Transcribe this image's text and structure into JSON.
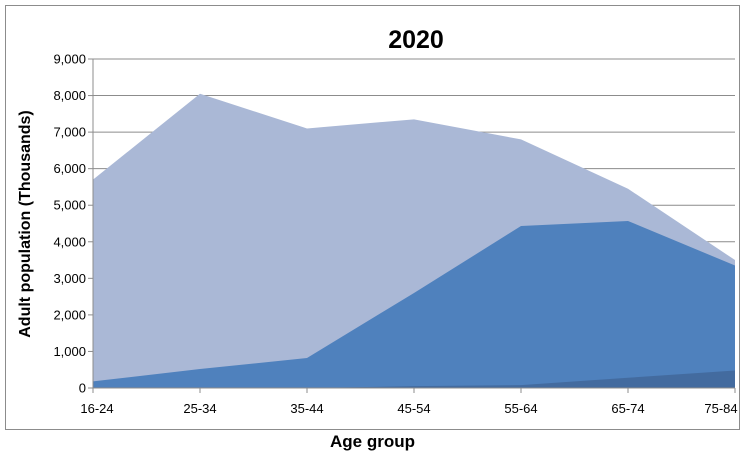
{
  "chart_data": {
    "type": "area",
    "stacked": false,
    "title": "2020",
    "xlabel": "Age group",
    "ylabel": "Adult population (Thousands)",
    "categories": [
      "16-24",
      "25-34",
      "35-44",
      "45-54",
      "55-64",
      "65-74",
      "75-84"
    ],
    "ylim": [
      0,
      9000
    ],
    "yticks": [
      0,
      1000,
      2000,
      3000,
      4000,
      5000,
      6000,
      7000,
      8000,
      9000
    ],
    "ytick_labels": [
      "0",
      "1,000",
      "2,000",
      "3,000",
      "4,000",
      "5,000",
      "6,000",
      "7,000",
      "8,000",
      "9,000"
    ],
    "grid": true,
    "legend": "none",
    "series": [
      {
        "values": [
          5700,
          8050,
          7100,
          7350,
          6800,
          5450,
          3500
        ],
        "color": "#aab8d6"
      },
      {
        "values": [
          180,
          520,
          820,
          2600,
          4430,
          4570,
          3350
        ],
        "color": "#4f81bd"
      },
      {
        "values": [
          0,
          0,
          0,
          50,
          80,
          280,
          480
        ],
        "color": "#436b9f"
      }
    ]
  }
}
